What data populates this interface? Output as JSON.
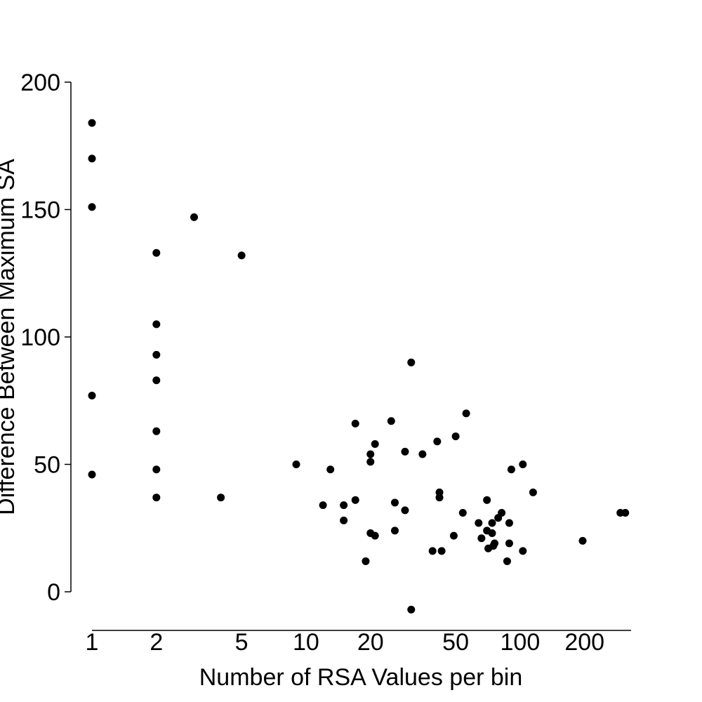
{
  "chart_data": {
    "type": "scatter",
    "title": "",
    "xlabel": "Number of RSA Values per bin",
    "ylabel": "Difference Between Maximum SA",
    "x_scale": "log",
    "xlim": [
      1,
      330
    ],
    "ylim": [
      -7,
      200
    ],
    "x_ticks": [
      1,
      2,
      5,
      10,
      20,
      50,
      100,
      200
    ],
    "x_tick_labels": [
      "1",
      "2",
      "5",
      "10",
      "20",
      "50",
      "100",
      "200"
    ],
    "y_ticks": [
      0,
      50,
      100,
      150,
      200
    ],
    "y_tick_labels": [
      "0",
      "50",
      "100",
      "150",
      "200"
    ],
    "grid": false,
    "legend": "none",
    "marker_color": "#000000",
    "points": [
      {
        "x": 1,
        "y": 184
      },
      {
        "x": 1,
        "y": 170
      },
      {
        "x": 1,
        "y": 151
      },
      {
        "x": 1,
        "y": 77
      },
      {
        "x": 1,
        "y": 46
      },
      {
        "x": 2,
        "y": 133
      },
      {
        "x": 2,
        "y": 105
      },
      {
        "x": 2,
        "y": 93
      },
      {
        "x": 2,
        "y": 83
      },
      {
        "x": 2,
        "y": 63
      },
      {
        "x": 2,
        "y": 48
      },
      {
        "x": 2,
        "y": 37
      },
      {
        "x": 3,
        "y": 147
      },
      {
        "x": 4,
        "y": 37
      },
      {
        "x": 5,
        "y": 132
      },
      {
        "x": 9,
        "y": 50
      },
      {
        "x": 12,
        "y": 34
      },
      {
        "x": 13,
        "y": 48
      },
      {
        "x": 15,
        "y": 34
      },
      {
        "x": 15,
        "y": 28
      },
      {
        "x": 17,
        "y": 66
      },
      {
        "x": 17,
        "y": 36
      },
      {
        "x": 19,
        "y": 12
      },
      {
        "x": 20,
        "y": 54
      },
      {
        "x": 20,
        "y": 51
      },
      {
        "x": 20,
        "y": 23
      },
      {
        "x": 21,
        "y": 58
      },
      {
        "x": 21,
        "y": 22
      },
      {
        "x": 25,
        "y": 67
      },
      {
        "x": 26,
        "y": 35
      },
      {
        "x": 26,
        "y": 24
      },
      {
        "x": 29,
        "y": 55
      },
      {
        "x": 29,
        "y": 32
      },
      {
        "x": 31,
        "y": 90
      },
      {
        "x": 31,
        "y": -7
      },
      {
        "x": 35,
        "y": 54
      },
      {
        "x": 39,
        "y": 16
      },
      {
        "x": 41,
        "y": 59
      },
      {
        "x": 42,
        "y": 39
      },
      {
        "x": 42,
        "y": 37
      },
      {
        "x": 43,
        "y": 16
      },
      {
        "x": 49,
        "y": 22
      },
      {
        "x": 50,
        "y": 61
      },
      {
        "x": 54,
        "y": 31
      },
      {
        "x": 56,
        "y": 70
      },
      {
        "x": 64,
        "y": 27
      },
      {
        "x": 66,
        "y": 21
      },
      {
        "x": 70,
        "y": 36
      },
      {
        "x": 70,
        "y": 24
      },
      {
        "x": 71,
        "y": 17
      },
      {
        "x": 74,
        "y": 27
      },
      {
        "x": 74,
        "y": 23
      },
      {
        "x": 75,
        "y": 18
      },
      {
        "x": 76,
        "y": 19
      },
      {
        "x": 79,
        "y": 29
      },
      {
        "x": 82,
        "y": 31
      },
      {
        "x": 87,
        "y": 12
      },
      {
        "x": 89,
        "y": 19
      },
      {
        "x": 89,
        "y": 27
      },
      {
        "x": 91,
        "y": 48
      },
      {
        "x": 103,
        "y": 50
      },
      {
        "x": 103,
        "y": 16
      },
      {
        "x": 115,
        "y": 39
      },
      {
        "x": 196,
        "y": 20
      },
      {
        "x": 294,
        "y": 31
      },
      {
        "x": 310,
        "y": 31
      }
    ]
  }
}
